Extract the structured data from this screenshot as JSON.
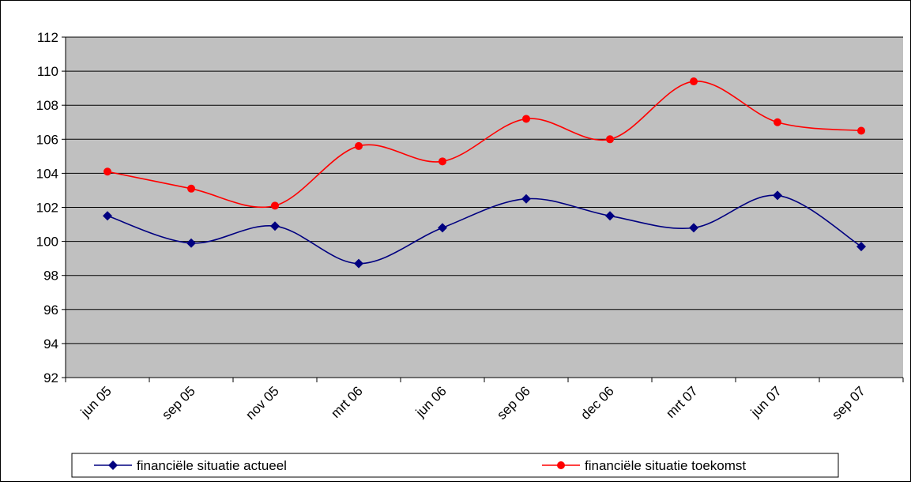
{
  "chart_data": {
    "type": "line",
    "categories": [
      "jun 05",
      "sep 05",
      "nov 05",
      "mrt 06",
      "jun 06",
      "sep 06",
      "dec 06",
      "mrt 07",
      "jun 07",
      "sep 07"
    ],
    "y_ticks": [
      "92",
      "94",
      "96",
      "98",
      "100",
      "102",
      "104",
      "106",
      "108",
      "110",
      "112"
    ],
    "ylim": [
      92,
      112
    ],
    "y_step": 2,
    "grid": "horizontal",
    "plot_background": "#C0C0C0",
    "legend_position": "bottom",
    "series": [
      {
        "name": "financiële situatie actueel",
        "color": "#000080",
        "marker": "diamond",
        "values": [
          101.5,
          99.9,
          100.9,
          98.7,
          100.8,
          102.5,
          101.5,
          100.8,
          102.7,
          99.7
        ]
      },
      {
        "name": "financiële situatie toekomst",
        "color": "#FF0000",
        "marker": "circle",
        "values": [
          104.1,
          103.1,
          102.1,
          105.6,
          104.7,
          107.2,
          106.0,
          109.4,
          107.0,
          106.5
        ]
      }
    ]
  }
}
